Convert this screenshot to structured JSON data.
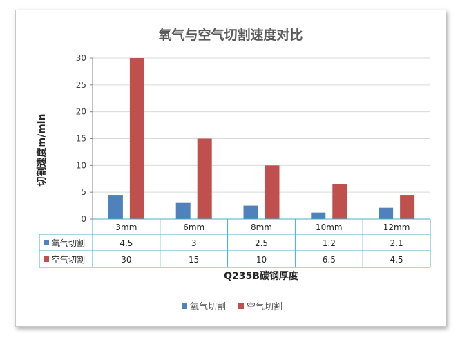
{
  "chart_data": {
    "type": "bar",
    "title": "氧气与空气切割速度对比",
    "xlabel": "Q235B碳钢厚度",
    "ylabel": "切割速度m/min",
    "categories": [
      "3mm",
      "6mm",
      "8mm",
      "10mm",
      "12mm"
    ],
    "ylim": [
      0,
      30
    ],
    "yticks": [
      "0",
      "5",
      "10",
      "15",
      "20",
      "25",
      "30"
    ],
    "grid": true,
    "legend_position": "bottom",
    "series": [
      {
        "name": "氧气切割",
        "color": "#4f81bd",
        "values": [
          4.5,
          3,
          2.5,
          1.2,
          2.1
        ],
        "labels": [
          "4.5",
          "3",
          "2.5",
          "1.2",
          "2.1"
        ]
      },
      {
        "name": "空气切割",
        "color": "#c0504d",
        "values": [
          30,
          15,
          10,
          6.5,
          4.5
        ],
        "labels": [
          "30",
          "15",
          "10",
          "6.5",
          "4.5"
        ]
      }
    ]
  }
}
